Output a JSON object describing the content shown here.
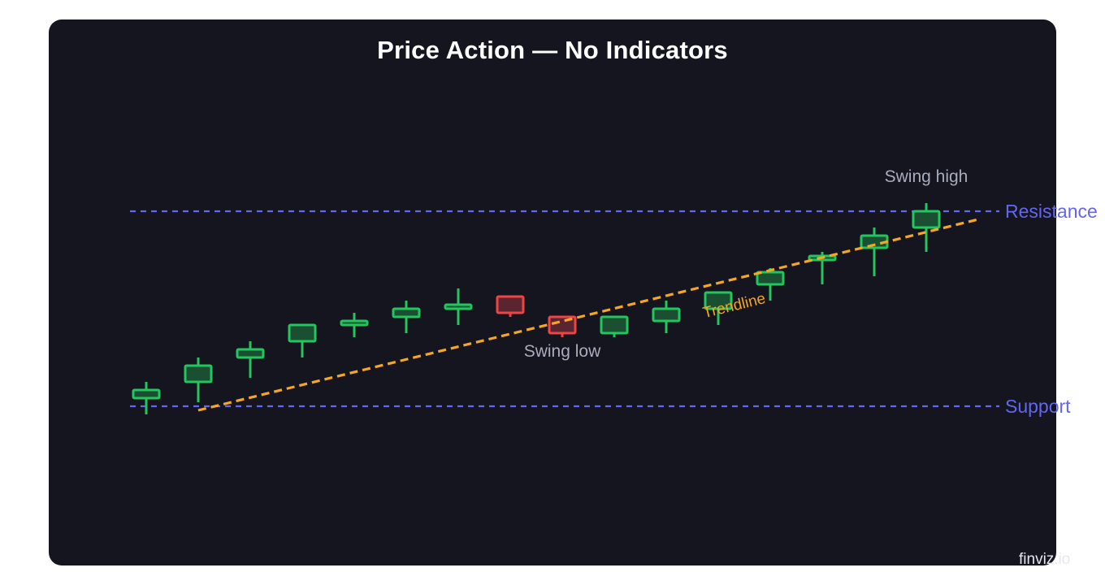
{
  "title": "Price Action — No Indicators",
  "watermark": "finviz.io",
  "colors": {
    "panel": "#14151f",
    "bull": "#22c55e",
    "bull_fill": "#1b4f32",
    "bear": "#ef4444",
    "bear_fill": "#5a2430",
    "level": "#6366f1",
    "trend": "#f5a623"
  },
  "chart_data": {
    "type": "candlestick",
    "title": "Price Action — No Indicators",
    "grid": false,
    "ylim": [
      0,
      100
    ],
    "candles": [
      {
        "open": 51.0,
        "high": 53.0,
        "low": 49.0,
        "close": 52.0
      },
      {
        "open": 53.0,
        "high": 56.0,
        "low": 50.5,
        "close": 55.0
      },
      {
        "open": 56.0,
        "high": 58.0,
        "low": 53.5,
        "close": 57.0
      },
      {
        "open": 58.0,
        "high": 60.0,
        "low": 56.0,
        "close": 60.0
      },
      {
        "open": 60.0,
        "high": 61.5,
        "low": 58.5,
        "close": 60.5
      },
      {
        "open": 61.0,
        "high": 63.0,
        "low": 59.0,
        "close": 62.0
      },
      {
        "open": 62.0,
        "high": 64.5,
        "low": 60.0,
        "close": 62.5
      },
      {
        "open": 63.5,
        "high": 63.5,
        "low": 61.0,
        "close": 61.5
      },
      {
        "open": 61.0,
        "high": 61.0,
        "low": 58.5,
        "close": 59.0
      },
      {
        "open": 59.0,
        "high": 61.0,
        "low": 58.5,
        "close": 61.0
      },
      {
        "open": 60.5,
        "high": 63.0,
        "low": 59.0,
        "close": 62.0
      },
      {
        "open": 62.0,
        "high": 64.0,
        "low": 60.0,
        "close": 64.0
      },
      {
        "open": 65.0,
        "high": 67.0,
        "low": 63.0,
        "close": 66.5
      },
      {
        "open": 68.0,
        "high": 69.0,
        "low": 65.0,
        "close": 68.5
      },
      {
        "open": 69.5,
        "high": 72.0,
        "low": 66.0,
        "close": 71.0
      },
      {
        "open": 72.0,
        "high": 75.0,
        "low": 69.0,
        "close": 74.0
      }
    ],
    "levels": [
      {
        "name": "Resistance",
        "value": 74.0
      },
      {
        "name": "Support",
        "value": 50.0
      }
    ],
    "trendline": {
      "label": "Trendline",
      "start": {
        "index": 1,
        "value": 49.5
      },
      "end": {
        "index": 16,
        "value": 73.0
      }
    },
    "annotations": [
      {
        "text": "Swing high",
        "index": 15
      },
      {
        "text": "Swing low",
        "index": 8
      }
    ]
  }
}
